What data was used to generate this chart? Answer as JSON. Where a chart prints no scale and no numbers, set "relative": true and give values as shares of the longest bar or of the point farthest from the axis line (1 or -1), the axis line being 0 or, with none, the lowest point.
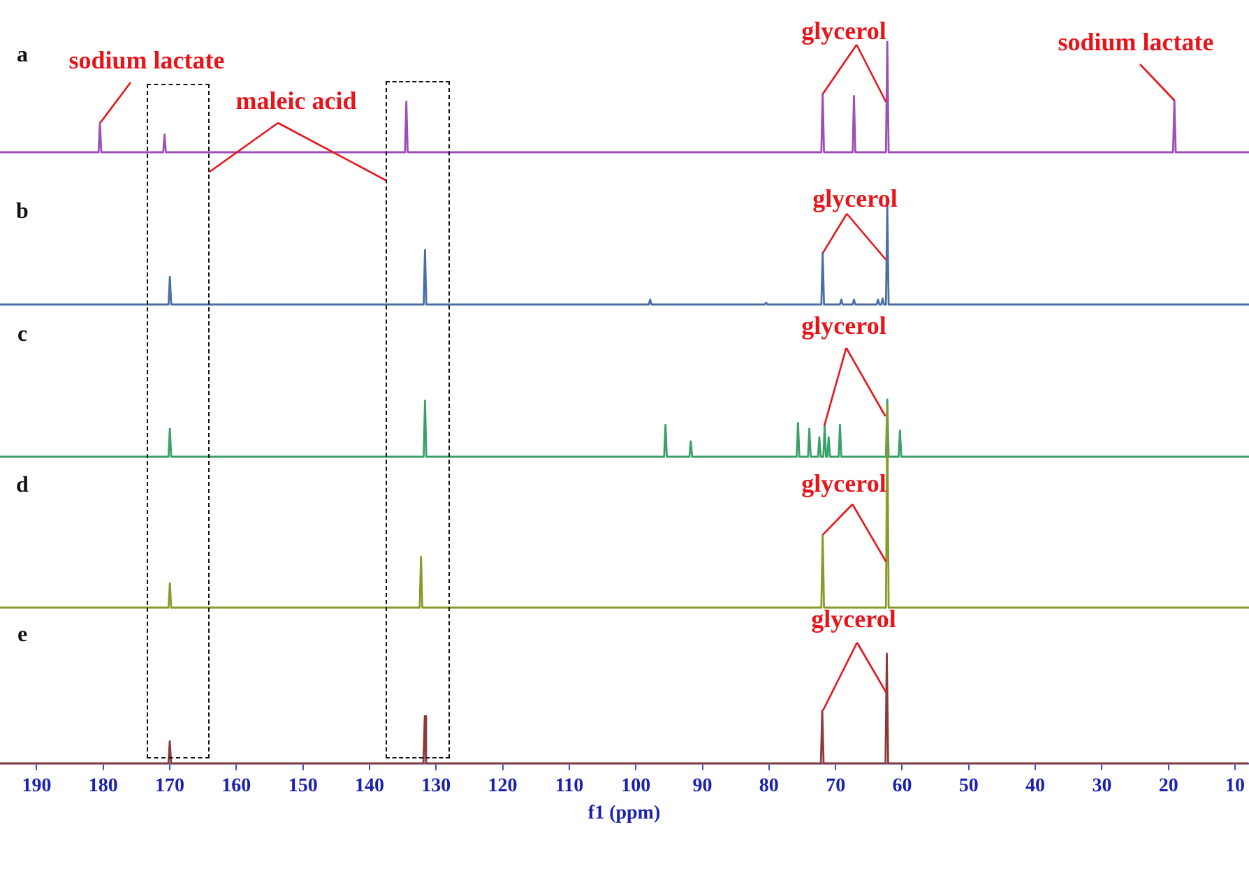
{
  "chart_data": [
    {
      "type": "line",
      "relative": true,
      "color": "#9b4fb8",
      "xlim": [
        195.5,
        8
      ],
      "tick_labels": false,
      "x": [
        195.5,
        180.7,
        180.5,
        180.3,
        171,
        170.8,
        170.6,
        134.7,
        134.5,
        134.3,
        72.2,
        72,
        71.8,
        67.5,
        67.3,
        67.1,
        62.5,
        62.3,
        62.1,
        19.4,
        19.2,
        19,
        8
      ],
      "values": [
        0,
        0,
        0.27,
        0,
        0,
        0.16,
        0,
        0,
        0.46,
        0,
        0,
        0.53,
        0,
        0,
        0.51,
        0,
        0,
        1,
        0,
        0,
        0.47,
        0,
        0
      ],
      "annotations": [
        "a",
        {
          "text": "sodium lactate",
          "x": 180.5,
          "y": 0.27
        },
        "maleic acid",
        {
          "text": "glycerol",
          "x": 72,
          "y": 0.53
        },
        {
          "text": "sodium lactate",
          "x": 19.2,
          "y": 0.47
        }
      ]
    },
    {
      "type": "line",
      "relative": true,
      "color": "#4a6fa5",
      "xlim": [
        195.5,
        8
      ],
      "tick_labels": false,
      "x": [
        195.5,
        170.2,
        170,
        169.8,
        131.9,
        131.7,
        131.5,
        98.1,
        97.9,
        97.7,
        80.7,
        80.5,
        80.3,
        72.2,
        72,
        71.8,
        69.4,
        69.2,
        69,
        67.5,
        67.3,
        67.1,
        63.9,
        63.7,
        63.5,
        63.2,
        63,
        62.8,
        62.5,
        62.3,
        62.1,
        8
      ],
      "values": [
        0,
        0,
        0.28,
        0,
        0,
        0.55,
        0,
        0,
        0.05,
        0,
        0,
        0.02,
        0,
        0,
        0.52,
        0,
        0,
        0.05,
        0,
        0,
        0.05,
        0,
        0,
        0.05,
        0,
        0,
        0.06,
        0,
        0,
        1,
        0,
        0
      ],
      "annotations": [
        "b",
        {
          "text": "glycerol",
          "x": 72,
          "y": 0.52
        }
      ]
    },
    {
      "type": "line",
      "relative": true,
      "color": "#3aa06a",
      "xlim": [
        195.5,
        8
      ],
      "tick_labels": false,
      "x": [
        195.5,
        170.2,
        170,
        169.8,
        131.9,
        131.7,
        131.5,
        95.8,
        95.6,
        95.4,
        92,
        91.8,
        91.6,
        75.9,
        75.7,
        75.5,
        74.2,
        74,
        73.8,
        72.7,
        72.5,
        72.3,
        71.9,
        71.7,
        71.5,
        71.3,
        71.1,
        70.9,
        69.6,
        69.4,
        69.2,
        62.5,
        62.3,
        62.1,
        60.6,
        60.4,
        60.2,
        8
      ],
      "values": [
        0,
        0,
        0.49,
        0,
        0,
        0.98,
        0,
        0,
        0.56,
        0,
        0,
        0.27,
        0,
        0,
        0.59,
        0,
        0,
        0.49,
        0,
        0,
        0.34,
        0,
        0,
        0.54,
        0,
        0,
        0.34,
        0,
        0,
        0.56,
        0,
        0,
        1,
        0,
        0,
        0.46,
        0,
        0
      ],
      "annotations": [
        "c",
        {
          "text": "glycerol",
          "x": 71.7,
          "y": 0.54
        }
      ]
    },
    {
      "type": "line",
      "relative": true,
      "color": "#8a9a2a",
      "xlim": [
        195.5,
        8
      ],
      "tick_labels": false,
      "x": [
        195.5,
        170.2,
        170,
        169.8,
        132.5,
        132.3,
        132.1,
        72.2,
        72,
        71.8,
        62.5,
        62.3,
        62.1,
        8
      ],
      "values": [
        0,
        0,
        0.12,
        0,
        0,
        0.25,
        0,
        0,
        0.36,
        0,
        0,
        1,
        0,
        0
      ],
      "annotations": [
        "d",
        {
          "text": "glycerol",
          "x": 72,
          "y": 0.36
        }
      ]
    },
    {
      "type": "line",
      "relative": true,
      "color": "#8b3a3a",
      "xlim": [
        195.5,
        8
      ],
      "tick_labels": "x",
      "xlabel": "f1 (ppm)",
      "xticks": [
        190,
        180,
        170,
        160,
        150,
        140,
        130,
        120,
        110,
        100,
        90,
        80,
        70,
        60,
        50,
        40,
        30,
        20,
        10
      ],
      "x": [
        195.5,
        170.2,
        170,
        169.8,
        131.9,
        131.7,
        131.5,
        72.2,
        72,
        71.8,
        62.5,
        62.3,
        62.1,
        8
      ],
      "values": [
        0,
        0,
        0.2,
        0,
        0,
        0.43,
        0,
        0,
        0.48,
        0,
        0,
        1,
        0,
        0
      ],
      "annotations": [
        "e",
        {
          "text": "glycerol",
          "x": 72,
          "y": 0.48
        }
      ]
    }
  ]
}
